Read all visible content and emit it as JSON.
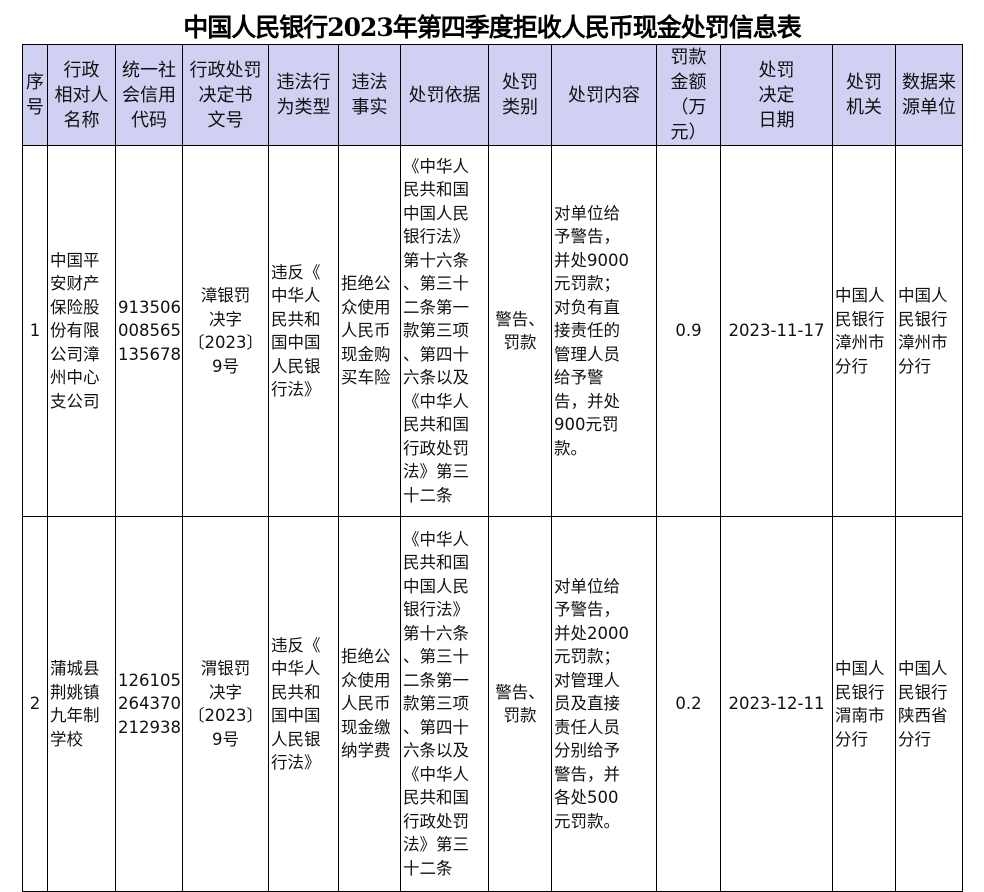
{
  "title": "中国人民银行2023年第四季度拒收人民币现金处罚信息表",
  "headers": [
    "序\n号",
    "行政\n相对人\n名称",
    "统一社\n会信用\n代码",
    "行政处罚\n决定书\n文号",
    "违法行\n为类型",
    "违法\n事实",
    "处罚依据",
    "处罚\n类别",
    "处罚内容",
    "罚款\n金额\n（万元）",
    "处罚\n决定\n日期",
    "处罚\n机关",
    "数据来\n源单位"
  ],
  "rows": [
    {
      "no": "1",
      "party": "中国平\n安财产\n保险股\n份有限\n公司漳\n州中心\n支公司",
      "credit_code": "913506\n008565\n135678",
      "doc_no": "漳银罚\n决字\n〔2023〕\n9号",
      "violation_type": "违反《\n中华人\n民共和\n国中国\n人民银\n行法》",
      "facts": "拒绝公\n众使用\n人民币\n现金购\n买车险",
      "basis": "《中华人\n民共和国\n中国人民\n银行法》\n第十六条\n、第三十\n二条第一\n款第三项\n、第四十\n六条以及\n《中华人\n民共和国\n行政处罚\n法》第三\n十二条",
      "category": "警告、\n罚款",
      "content": "对单位给\n予警告，\n并处9000\n元罚款；\n对负有直\n接责任的\n管理人员\n给予警\n告，并处\n900元罚\n款。",
      "amount": "0.9",
      "date": "2023-11-17",
      "authority": "中国人\n民银行\n漳州市\n分行",
      "source": "中国人\n民银行\n漳州市\n分行"
    },
    {
      "no": "2",
      "party": "蒲城县\n荆姚镇\n九年制\n学校",
      "credit_code": "126105\n264370\n212938",
      "doc_no": "渭银罚\n决字\n〔2023〕\n9号",
      "violation_type": "违反《\n中华人\n民共和\n国中国\n人民银\n行法》",
      "facts": "拒绝公\n众使用\n人民币\n现金缴\n纳学费",
      "basis": "《中华人\n民共和国\n中国人民\n银行法》\n第十六条\n、第三十\n二条第一\n款第三项\n、第四十\n六条以及\n《中华人\n民共和国\n行政处罚\n法》第三\n十二条",
      "category": "警告、\n罚款",
      "content": "对单位给\n予警告，\n并处2000\n元罚款；\n对管理人\n员及直接\n责任人员\n分别给予\n警告，并\n各处500\n元罚款。",
      "amount": "0.2",
      "date": "2023-12-11",
      "authority": "中国人\n民银行\n渭南市\n分行",
      "source": "中国人\n民银行\n陕西省\n分行"
    }
  ]
}
